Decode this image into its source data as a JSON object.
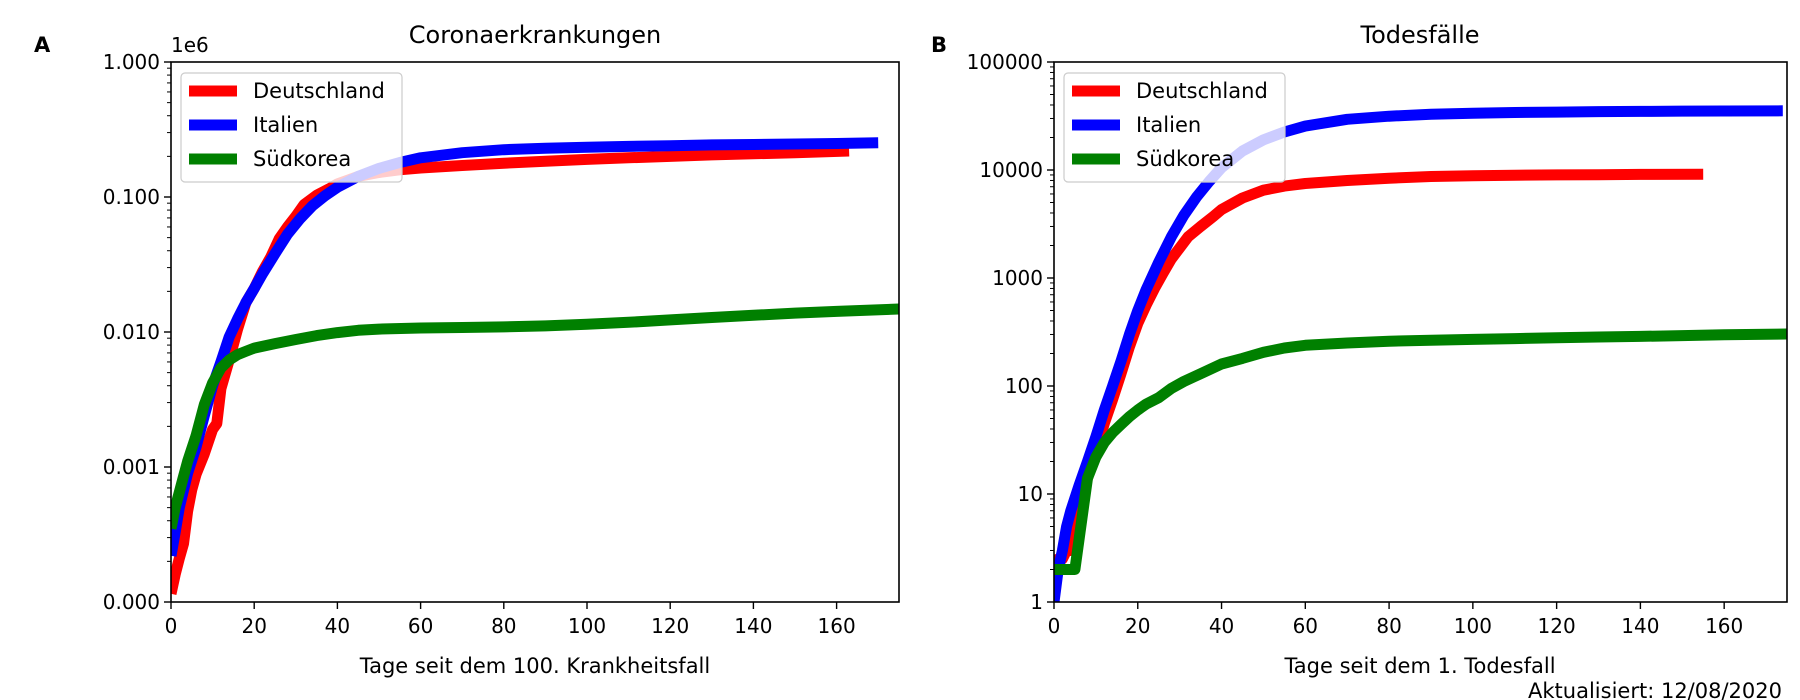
{
  "footer": {
    "updated": "Aktualisiert: 12/08/2020"
  },
  "chart_data": [
    {
      "type": "line",
      "panel": "A",
      "title": "Coronaerkrankungen",
      "xlabel": "Tage seit dem 100. Krankheitsfall",
      "ylabel": "",
      "yscale": "log",
      "offset_text": "1e6",
      "xlim": [
        0,
        175
      ],
      "ylim": [
        0.0001,
        1.0
      ],
      "xticks": [
        0,
        20,
        40,
        60,
        80,
        100,
        120,
        140,
        160
      ],
      "xtick_labels": [
        "0",
        "20",
        "40",
        "60",
        "80",
        "100",
        "120",
        "140",
        "160"
      ],
      "yticks": [
        0.0001,
        0.001,
        0.01,
        0.1,
        1.0
      ],
      "ytick_labels": [
        "0.000",
        "0.001",
        "0.010",
        "0.100",
        "1.000"
      ],
      "grid": false,
      "legend_position": "top-left",
      "series": [
        {
          "name": "Deutschland",
          "color": "#ff0000",
          "width": 11,
          "x": [
            0,
            1,
            2,
            3,
            4,
            5,
            6,
            8,
            10,
            11,
            12,
            14,
            16,
            18,
            20,
            22,
            24,
            26,
            28,
            30,
            32,
            35,
            38,
            40,
            45,
            50,
            55,
            60,
            70,
            80,
            90,
            100,
            110,
            120,
            130,
            140,
            150,
            163
          ],
          "y": [
            0.000115,
            0.00016,
            0.00021,
            0.00027,
            0.00047,
            0.00068,
            0.00088,
            0.00125,
            0.0019,
            0.0021,
            0.0038,
            0.0062,
            0.0105,
            0.0165,
            0.021,
            0.028,
            0.036,
            0.049,
            0.06,
            0.072,
            0.088,
            0.103,
            0.115,
            0.125,
            0.142,
            0.152,
            0.159,
            0.164,
            0.171,
            0.178,
            0.184,
            0.19,
            0.195,
            0.2,
            0.205,
            0.209,
            0.213,
            0.219
          ]
        },
        {
          "name": "Italien",
          "color": "#0000ff",
          "width": 11,
          "x": [
            0,
            1,
            2,
            4,
            6,
            8,
            10,
            12,
            14,
            16,
            18,
            20,
            22,
            25,
            28,
            31,
            34,
            37,
            40,
            45,
            50,
            55,
            60,
            70,
            80,
            90,
            100,
            110,
            120,
            130,
            140,
            150,
            160,
            170
          ],
          "y": [
            0.00022,
            0.00033,
            0.0005,
            0.0009,
            0.0014,
            0.0024,
            0.004,
            0.006,
            0.0092,
            0.0125,
            0.0165,
            0.021,
            0.027,
            0.038,
            0.053,
            0.069,
            0.086,
            0.102,
            0.118,
            0.142,
            0.163,
            0.18,
            0.195,
            0.213,
            0.224,
            0.23,
            0.234,
            0.237,
            0.24,
            0.243,
            0.245,
            0.247,
            0.249,
            0.252
          ]
        },
        {
          "name": "Südkorea",
          "color": "#008000",
          "width": 11,
          "x": [
            0,
            1,
            2,
            3,
            4,
            6,
            8,
            10,
            12,
            14,
            16,
            18,
            20,
            25,
            30,
            35,
            40,
            45,
            50,
            60,
            70,
            80,
            90,
            100,
            110,
            120,
            130,
            140,
            150,
            160,
            175
          ],
          "y": [
            0.00035,
            0.0005,
            0.00065,
            0.00085,
            0.0011,
            0.0017,
            0.0029,
            0.0042,
            0.0054,
            0.0062,
            0.0068,
            0.0072,
            0.0076,
            0.0082,
            0.0088,
            0.0094,
            0.0099,
            0.0103,
            0.0105,
            0.0107,
            0.0108,
            0.0109,
            0.0111,
            0.0114,
            0.0118,
            0.0123,
            0.0128,
            0.0133,
            0.0138,
            0.0142,
            0.0148
          ]
        }
      ]
    },
    {
      "type": "line",
      "panel": "B",
      "title": "Todesfälle",
      "xlabel": "Tage seit dem 1. Todesfall",
      "ylabel": "",
      "yscale": "log",
      "xlim": [
        0,
        175
      ],
      "ylim": [
        1,
        100000
      ],
      "xticks": [
        0,
        20,
        40,
        60,
        80,
        100,
        120,
        140,
        160
      ],
      "xtick_labels": [
        "0",
        "20",
        "40",
        "60",
        "80",
        "100",
        "120",
        "140",
        "160"
      ],
      "yticks": [
        1,
        10,
        100,
        1000,
        10000,
        100000
      ],
      "ytick_labels": [
        "1",
        "10",
        "100",
        "1000",
        "10000",
        "100000"
      ],
      "grid": false,
      "legend_position": "top-left",
      "series": [
        {
          "name": "Deutschland",
          "color": "#ff0000",
          "width": 11,
          "x": [
            0,
            1,
            2,
            3,
            4,
            5,
            6,
            8,
            10,
            12,
            14,
            16,
            18,
            20,
            22,
            24,
            26,
            28,
            30,
            32,
            35,
            38,
            40,
            45,
            50,
            55,
            60,
            70,
            80,
            90,
            100,
            110,
            120,
            130,
            140,
            155
          ],
          "y": [
            2,
            2.5,
            2.5,
            3,
            3,
            7,
            9,
            14,
            25,
            45,
            75,
            130,
            230,
            380,
            560,
            800,
            1100,
            1500,
            1900,
            2400,
            3000,
            3700,
            4300,
            5500,
            6500,
            7100,
            7500,
            8000,
            8400,
            8700,
            8850,
            8950,
            9000,
            9050,
            9100,
            9150
          ]
        },
        {
          "name": "Italien",
          "color": "#0000ff",
          "width": 11,
          "x": [
            0,
            1,
            2,
            3,
            4,
            6,
            8,
            10,
            12,
            14,
            16,
            18,
            20,
            22,
            25,
            28,
            31,
            34,
            37,
            40,
            45,
            50,
            55,
            60,
            70,
            80,
            90,
            100,
            110,
            120,
            130,
            140,
            150,
            160,
            174
          ],
          "y": [
            1,
            2,
            3,
            5,
            7,
            12,
            20,
            34,
            60,
            100,
            170,
            300,
            500,
            780,
            1400,
            2400,
            3800,
            5600,
            7800,
            10500,
            15000,
            19000,
            22500,
            25500,
            29500,
            31500,
            32800,
            33600,
            34100,
            34400,
            34700,
            34900,
            35100,
            35200,
            35300
          ]
        },
        {
          "name": "Südkorea",
          "color": "#008000",
          "width": 11,
          "x": [
            0,
            1,
            2,
            3,
            5,
            8,
            10,
            12,
            14,
            16,
            18,
            20,
            22,
            25,
            28,
            31,
            35,
            40,
            45,
            50,
            55,
            60,
            70,
            80,
            90,
            100,
            110,
            120,
            130,
            140,
            150,
            160,
            175
          ],
          "y": [
            2,
            2,
            2,
            2,
            2,
            14,
            22,
            30,
            37,
            44,
            52,
            60,
            68,
            78,
            95,
            110,
            130,
            160,
            180,
            205,
            225,
            238,
            250,
            260,
            265,
            270,
            275,
            280,
            284,
            288,
            293,
            298,
            303
          ]
        }
      ]
    }
  ]
}
